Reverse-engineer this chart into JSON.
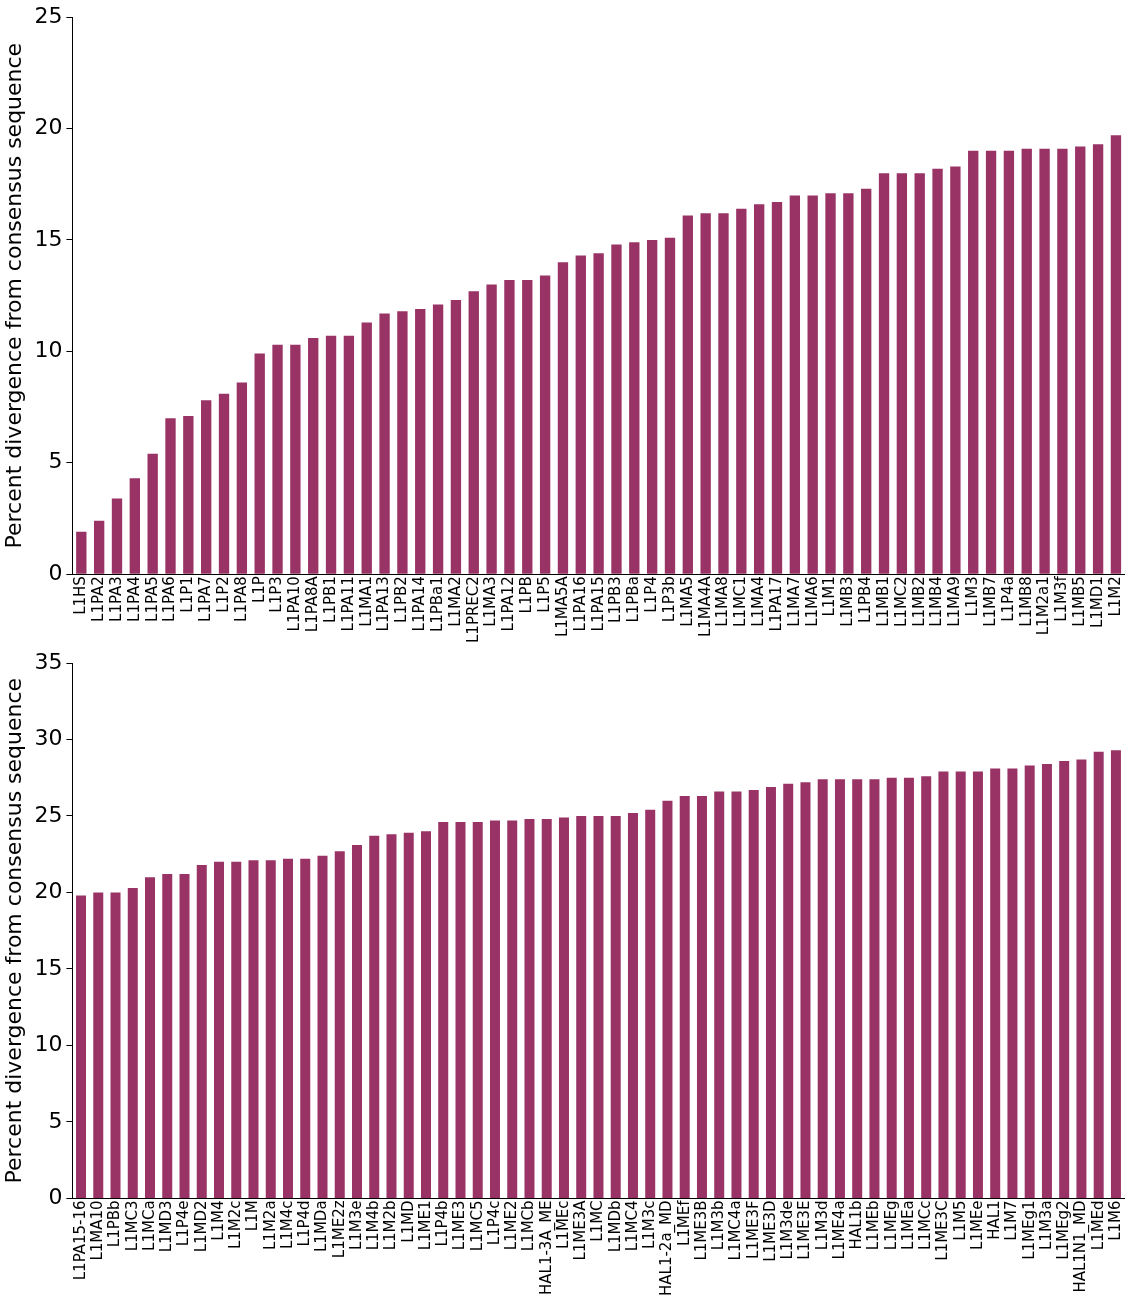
{
  "chart_data": [
    {
      "type": "bar",
      "ylabel": "Percent divergence from consensus sequence",
      "color": "#993366",
      "ylim": [
        0,
        25
      ],
      "yticks": [
        0,
        5,
        10,
        15,
        20,
        25
      ],
      "categories": [
        "L1HS",
        "L1PA2",
        "L1PA3",
        "L1PA4",
        "L1PA5",
        "L1PA6",
        "L1P1",
        "L1PA7",
        "L1P2",
        "L1PA8",
        "L1P",
        "L1P3",
        "L1PA10",
        "L1PA8A",
        "L1PB1",
        "L1PA11",
        "L1MA1",
        "L1PA13",
        "L1PB2",
        "L1PA14",
        "L1PBa1",
        "L1MA2",
        "L1PREC2",
        "L1MA3",
        "L1PA12",
        "L1PB",
        "L1P5",
        "L1MA5A",
        "L1PA16",
        "L1PA15",
        "L1PB3",
        "L1PBa",
        "L1P4",
        "L1P3b",
        "L1MA5",
        "L1MA4A",
        "L1MA8",
        "L1MC1",
        "L1MA4",
        "L1PA17",
        "L1MA7",
        "L1MA6",
        "L1M1",
        "L1MB3",
        "L1PB4",
        "L1MB1",
        "L1MC2",
        "L1MB2",
        "L1MB4",
        "L1MA9",
        "L1M3",
        "L1MB7",
        "L1P4a",
        "L1MB8",
        "L1M2a1",
        "L1M3f",
        "L1MB5",
        "L1MD1",
        "L1M2"
      ],
      "values": [
        1.9,
        2.4,
        3.4,
        4.3,
        5.4,
        7.0,
        7.1,
        7.8,
        8.1,
        8.6,
        9.9,
        10.3,
        10.3,
        10.6,
        10.7,
        10.7,
        11.3,
        11.7,
        11.8,
        11.9,
        12.1,
        12.3,
        12.7,
        13.0,
        13.2,
        13.2,
        13.4,
        14.0,
        14.3,
        14.4,
        14.8,
        14.9,
        15.0,
        15.1,
        16.1,
        16.2,
        16.2,
        16.4,
        16.6,
        16.7,
        17.0,
        17.0,
        17.1,
        17.1,
        17.3,
        18.0,
        18.0,
        18.0,
        18.2,
        18.3,
        19.0,
        19.0,
        19.0,
        19.1,
        19.1,
        19.1,
        19.2,
        19.3,
        19.7
      ]
    },
    {
      "type": "bar",
      "ylabel": "Percent divergence from consensus sequence",
      "color": "#993366",
      "ylim": [
        0,
        35
      ],
      "yticks": [
        0,
        5,
        10,
        15,
        20,
        25,
        30,
        35
      ],
      "categories": [
        "L1PA15-16",
        "L1MA10",
        "L1PBb",
        "L1MC3",
        "L1MCa",
        "L1MD3",
        "L1P4e",
        "L1MD2",
        "L1M4",
        "L1M2c",
        "L1M",
        "L1M2a",
        "L1M4c",
        "L1P4d",
        "L1MDa",
        "L1ME2z",
        "L1M3e",
        "L1M4b",
        "L1M2b",
        "L1MD",
        "L1ME1",
        "L1P4b",
        "L1ME3",
        "L1MC5",
        "L1P4c",
        "L1ME2",
        "L1MCb",
        "HAL1-3A_ME",
        "L1MEc",
        "L1ME3A",
        "L1MC",
        "L1MDb",
        "L1MC4",
        "L1M3c",
        "HAL1-2a_MD",
        "L1MEf",
        "L1ME3B",
        "L1M3b",
        "L1MC4a",
        "L1ME3F",
        "L1ME3D",
        "L1M3de",
        "L1ME3E",
        "L1M3d",
        "L1ME4a",
        "HAL1b",
        "L1MEb",
        "L1MEg",
        "L1MEa",
        "L1MCc",
        "L1ME3C",
        "L1M5",
        "L1MEe",
        "HAL1",
        "L1M7",
        "L1MEg1",
        "L1M3a",
        "L1MEg2",
        "HAL1N1_MD",
        "L1MEd",
        "L1M6"
      ],
      "values": [
        19.8,
        20.0,
        20.0,
        20.3,
        21.0,
        21.2,
        21.2,
        21.8,
        22.0,
        22.0,
        22.1,
        22.1,
        22.2,
        22.2,
        22.4,
        22.7,
        23.1,
        23.7,
        23.8,
        23.9,
        24.0,
        24.6,
        24.6,
        24.6,
        24.7,
        24.7,
        24.8,
        24.8,
        24.9,
        25.0,
        25.0,
        25.0,
        25.2,
        25.4,
        26.0,
        26.3,
        26.3,
        26.6,
        26.6,
        26.7,
        26.9,
        27.1,
        27.2,
        27.4,
        27.4,
        27.4,
        27.4,
        27.5,
        27.5,
        27.6,
        27.9,
        27.9,
        27.9,
        28.1,
        28.1,
        28.3,
        28.4,
        28.6,
        28.7,
        29.2,
        29.3
      ]
    }
  ]
}
